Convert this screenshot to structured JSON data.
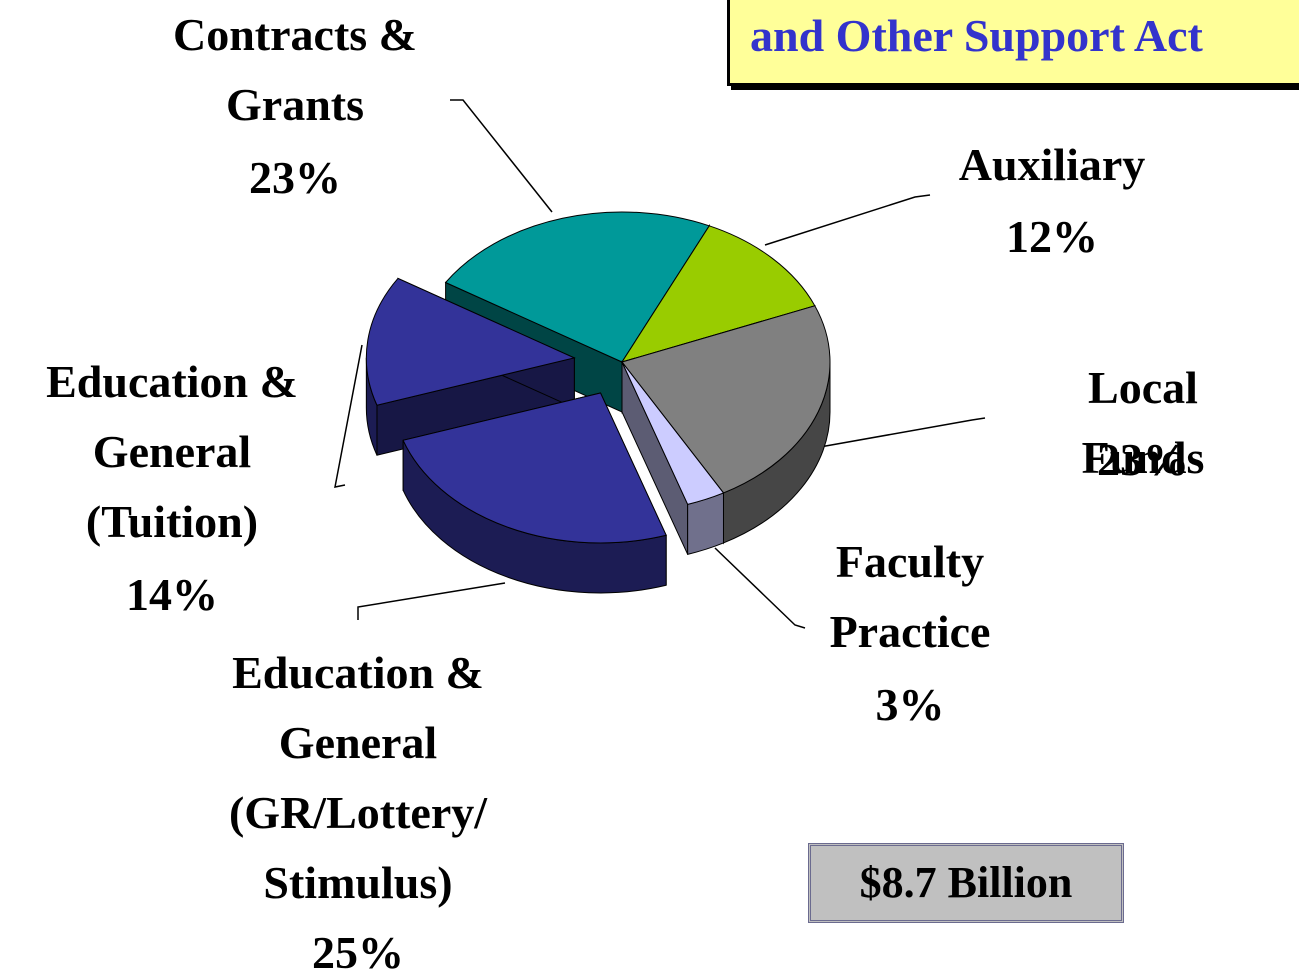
{
  "chart_data": {
    "type": "pie",
    "title": "and Other Support Act",
    "categories": [
      "Contracts &\nGrants",
      "Auxiliary",
      "Local Funds",
      "Faculty\nPractice",
      "Education &\nGeneral\n(GR/Lottery/\nStimulus)",
      "Education &\nGeneral\n(Tuition)"
    ],
    "values": [
      23,
      12,
      23,
      3,
      25,
      14
    ],
    "value_labels": [
      "23%",
      "12%",
      "23%",
      "3%",
      "25%",
      "14%"
    ],
    "colors": [
      "#009999",
      "#99cc00",
      "#808080",
      "#ccccff",
      "#333399",
      "#333399"
    ],
    "exploded": [
      false,
      false,
      false,
      false,
      true,
      true
    ],
    "annotation": "$8.7 Billion"
  }
}
